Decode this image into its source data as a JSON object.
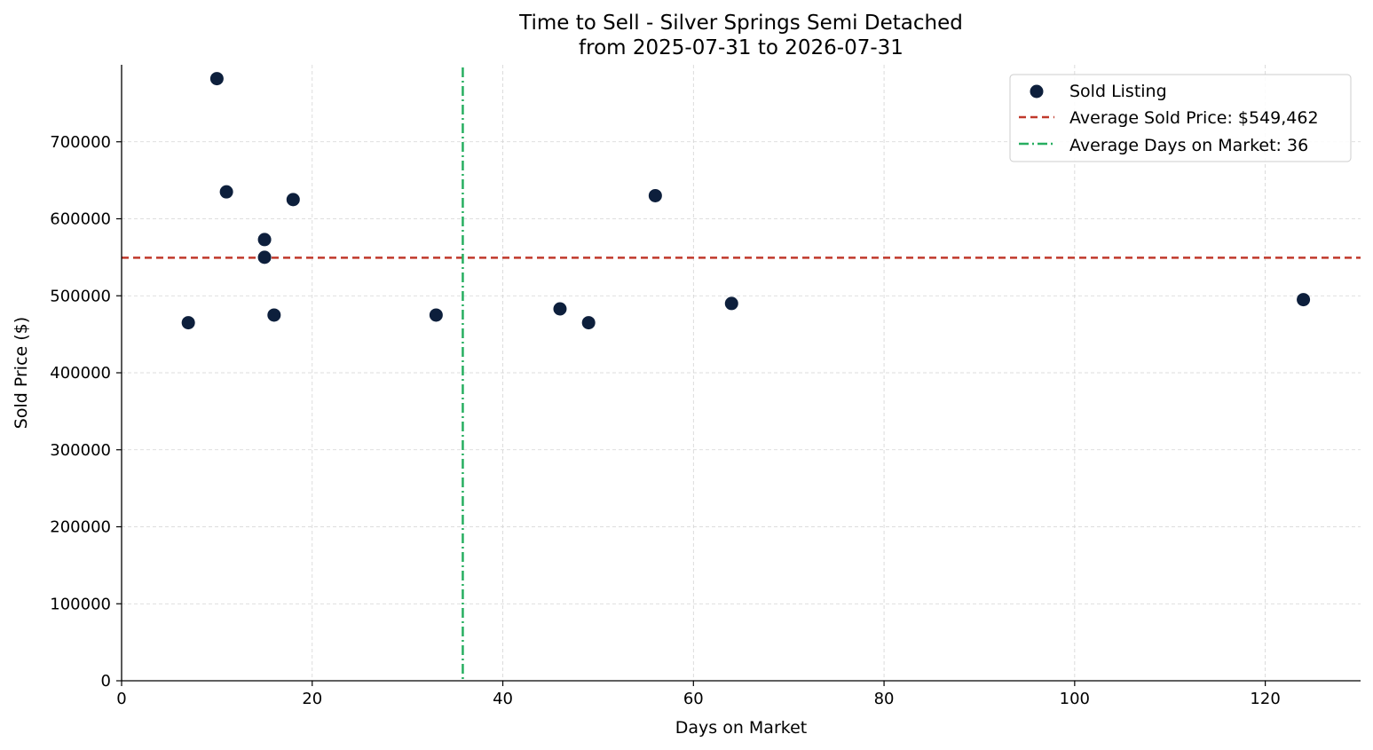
{
  "chart_data": {
    "type": "scatter",
    "title": "Time to Sell - Silver Springs Semi Detached",
    "subtitle": "from 2025-07-31 to 2026-07-31",
    "xlabel": "Days on Market",
    "ylabel": "Sold Price ($)",
    "xlim": [
      0,
      130
    ],
    "ylim": [
      0,
      800000
    ],
    "xticks": [
      0,
      20,
      40,
      60,
      80,
      100,
      120
    ],
    "yticks": [
      0,
      100000,
      200000,
      300000,
      400000,
      500000,
      600000,
      700000
    ],
    "grid": true,
    "legend_position": "top-right",
    "series": [
      {
        "name": "Sold Listing",
        "color": "#0d1f3c",
        "points": [
          {
            "x": 7,
            "y": 465000
          },
          {
            "x": 10,
            "y": 782000
          },
          {
            "x": 11,
            "y": 635000
          },
          {
            "x": 15,
            "y": 573000
          },
          {
            "x": 15,
            "y": 550000
          },
          {
            "x": 16,
            "y": 475000
          },
          {
            "x": 18,
            "y": 625000
          },
          {
            "x": 33,
            "y": 475000
          },
          {
            "x": 46,
            "y": 483000
          },
          {
            "x": 49,
            "y": 465000
          },
          {
            "x": 56,
            "y": 630000
          },
          {
            "x": 64,
            "y": 490000
          },
          {
            "x": 124,
            "y": 495000
          }
        ]
      }
    ],
    "reference_lines": [
      {
        "name": "Average Sold Price: $549,462",
        "orientation": "horizontal",
        "value": 549462,
        "color": "#c0392b",
        "style": "dashed"
      },
      {
        "name": "Average Days on Market: 36",
        "orientation": "vertical",
        "value": 35.8,
        "color": "#27ae60",
        "style": "dashdot"
      }
    ]
  }
}
